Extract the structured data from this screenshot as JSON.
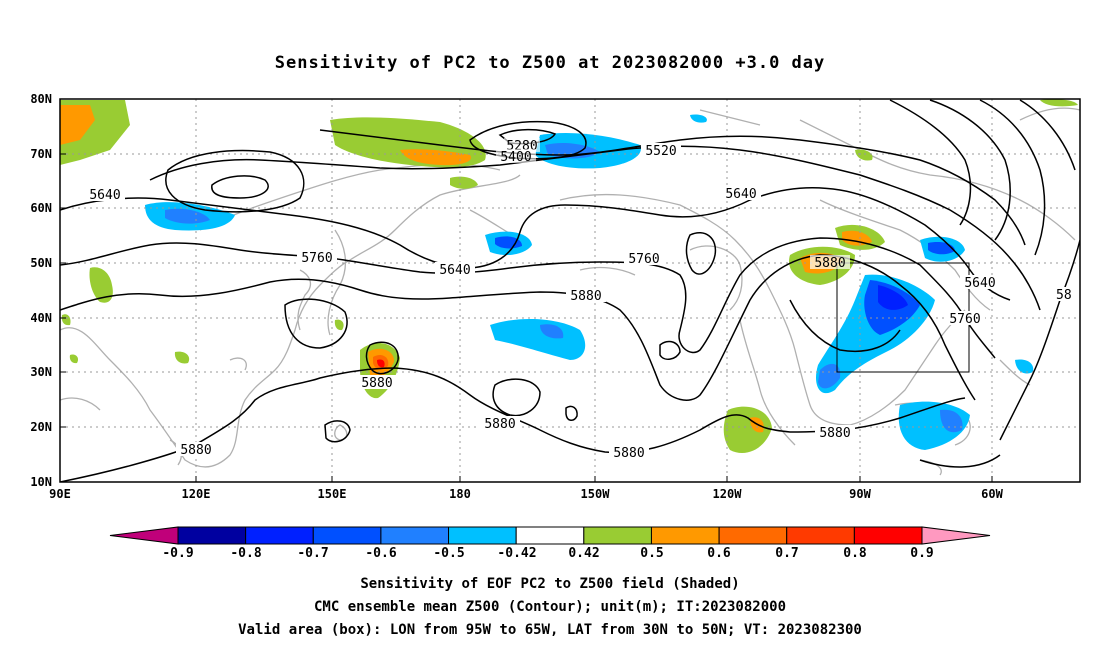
{
  "title": "Sensitivity of PC2 to Z500 at 2023082000 +3.0 day",
  "lat_labels": [
    "80N",
    "70N",
    "60N",
    "50N",
    "40N",
    "30N",
    "20N",
    "10N"
  ],
  "lon_labels": [
    "90E",
    "120E",
    "150E",
    "180",
    "150W",
    "120W",
    "90W",
    "60W"
  ],
  "contour_labels": [
    "5280",
    "5400",
    "5520",
    "5640",
    "5640",
    "5640",
    "5760",
    "5760",
    "5760",
    "5880",
    "5880",
    "5880",
    "5880",
    "5880",
    "5880",
    "5640",
    "58"
  ],
  "colorbar": {
    "labels": [
      "-0.9",
      "-0.8",
      "-0.7",
      "-0.6",
      "-0.5",
      "-0.42",
      "0.42",
      "0.5",
      "0.6",
      "0.7",
      "0.8",
      "0.9"
    ],
    "colors": [
      "#c0007a",
      "#0000a0",
      "#0020ff",
      "#0050ff",
      "#2080ff",
      "#00c0ff",
      "#ffffff",
      "#99cc33",
      "#ff9900",
      "#ff6a00",
      "#ff3a00",
      "#ff0000",
      "#ff99c0"
    ]
  },
  "footer": [
    "Sensitivity of EOF PC2 to Z500 field (Shaded)",
    "CMC ensemble mean Z500 (Contour); unit(m); IT:2023082000",
    "Valid area (box): LON from 95W to 65W, LAT from 30N to 50N; VT: 2023082300"
  ]
}
